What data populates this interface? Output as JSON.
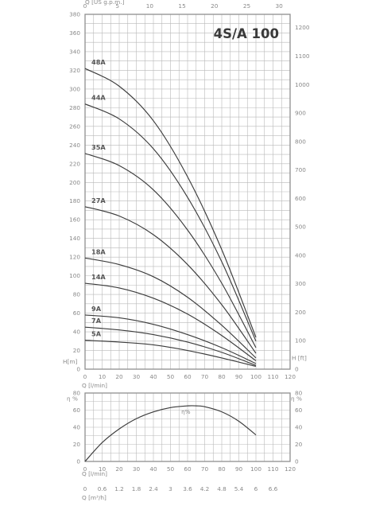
{
  "chart_data": [
    {
      "type": "line",
      "title": "4S/A 100",
      "ylabel_left": "H[m]",
      "ylabel_right": "H [ft]",
      "xlabel_bottom": "Q [l/min]",
      "xlabel_top": "Q [US g.p.m.]",
      "xlim": [
        0,
        120
      ],
      "ylim": [
        0,
        380
      ],
      "ylim_right": [
        0,
        1250
      ],
      "x_ticks": [
        0,
        10,
        20,
        30,
        40,
        50,
        60,
        70,
        80,
        90,
        100,
        110,
        120
      ],
      "y_ticks": [
        0,
        20,
        40,
        60,
        80,
        100,
        120,
        140,
        160,
        180,
        200,
        220,
        240,
        260,
        280,
        300,
        320,
        340,
        360,
        380
      ],
      "top_ticks": [
        "0",
        "5",
        "10",
        "15",
        "20",
        "25",
        "30"
      ],
      "right_ticks": [
        "0",
        "100",
        "200",
        "300",
        "400",
        "500",
        "600",
        "700",
        "800",
        "900",
        "1000",
        "1100",
        "1200"
      ],
      "grid": true,
      "series": [
        {
          "name": "48A",
          "x": [
            0,
            20,
            40,
            60,
            80,
            100
          ],
          "y": [
            322,
            303,
            266,
            206,
            128,
            34
          ]
        },
        {
          "name": "44A",
          "x": [
            0,
            20,
            40,
            60,
            80,
            100
          ],
          "y": [
            284,
            268,
            236,
            184,
            115,
            30
          ]
        },
        {
          "name": "35A",
          "x": [
            0,
            20,
            40,
            60,
            80,
            100
          ],
          "y": [
            231,
            218,
            192,
            149,
            92,
            23
          ]
        },
        {
          "name": "27A",
          "x": [
            0,
            20,
            40,
            60,
            80,
            100
          ],
          "y": [
            174,
            164,
            144,
            112,
            69,
            17
          ]
        },
        {
          "name": "18A",
          "x": [
            0,
            20,
            40,
            60,
            80,
            100
          ],
          "y": [
            119,
            112,
            99,
            77,
            47,
            12
          ]
        },
        {
          "name": "14A",
          "x": [
            0,
            20,
            40,
            60,
            80,
            100
          ],
          "y": [
            92,
            87,
            76,
            59,
            36,
            9
          ]
        },
        {
          "name": "9A",
          "x": [
            0,
            20,
            40,
            60,
            80,
            100
          ],
          "y": [
            58,
            55,
            48,
            37,
            23,
            6
          ]
        },
        {
          "name": "7A",
          "x": [
            0,
            20,
            40,
            60,
            80,
            100
          ],
          "y": [
            45,
            42,
            37,
            29,
            18,
            4
          ]
        },
        {
          "name": "5A",
          "x": [
            0,
            20,
            40,
            60,
            80,
            100
          ],
          "y": [
            31,
            29,
            26,
            20,
            12,
            3
          ]
        }
      ]
    },
    {
      "type": "line",
      "ylabel": "η %",
      "xlabel_bottom": "Q [l/min]",
      "xlabel_m3h": "Q [m³/h]",
      "xlim": [
        0,
        120
      ],
      "ylim": [
        0,
        80
      ],
      "x_ticks": [
        0,
        10,
        20,
        30,
        40,
        50,
        60,
        70,
        80,
        90,
        100,
        110,
        120
      ],
      "y_ticks": [
        0,
        20,
        40,
        60,
        80
      ],
      "m3h_ticks": [
        "0",
        "0.6",
        "1.2",
        "1.8",
        "2.4",
        "3",
        "3.6",
        "4.2",
        "4.8",
        "5.4",
        "6",
        "6.6"
      ],
      "grid": true,
      "series": [
        {
          "name": "η%",
          "x": [
            0,
            10,
            20,
            30,
            40,
            50,
            60,
            65,
            70,
            80,
            90,
            100
          ],
          "y": [
            0,
            22,
            38,
            50,
            58,
            63,
            65,
            65,
            64,
            58,
            47,
            31
          ]
        }
      ]
    }
  ]
}
